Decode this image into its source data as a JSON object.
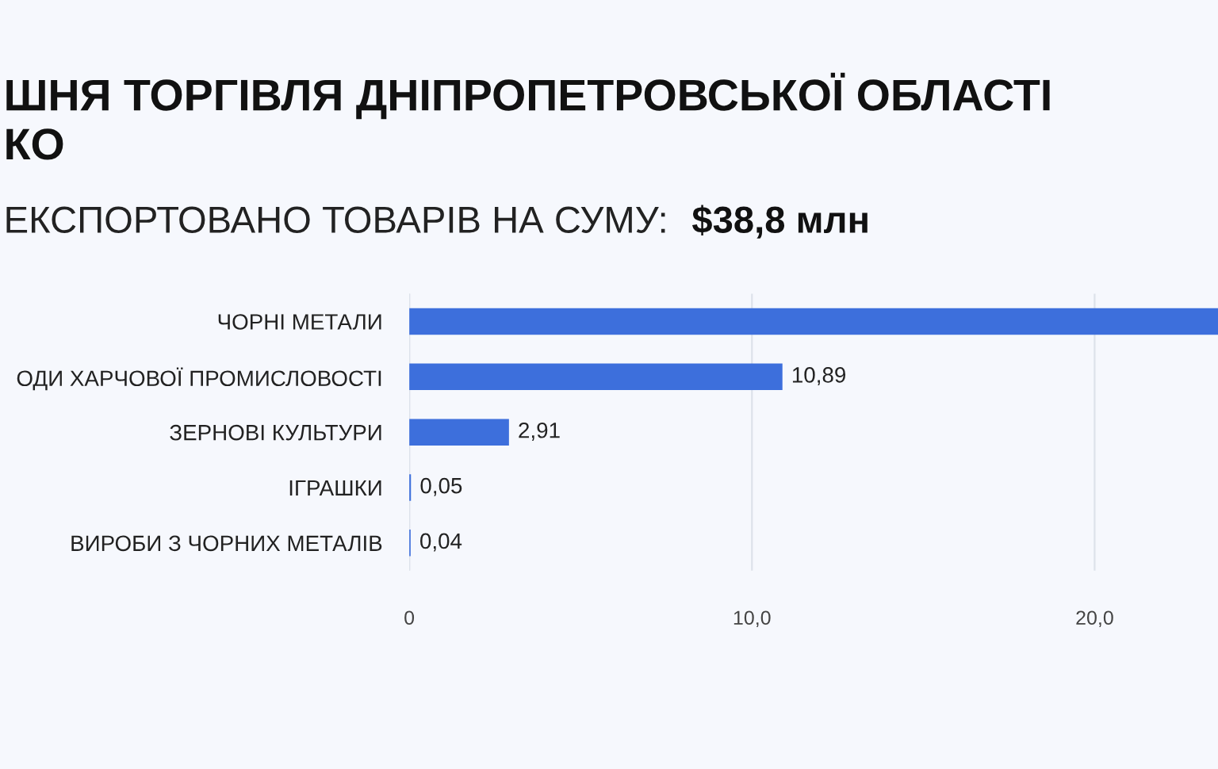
{
  "chart_data": {
    "type": "bar",
    "orientation": "horizontal",
    "title": "ШНЯ ТОРГІВЛЯ ДНІПРОПЕТРОВСЬКОЇ ОБЛАСТІ\nКО",
    "subtitle": "ЕКСПОРТОВАНО ТОВАРІВ НА СУМУ:",
    "annotations": [
      "$38,8 млн"
    ],
    "categories": [
      "ЧОРНІ МЕТАЛИ",
      "ОДИ ХАРЧОВОЇ ПРОМИСЛОВОСТІ",
      "ЗЕРНОВІ КУЛЬТУРИ",
      "ІГРАШКИ",
      "ВИРОБИ З ЧОРНИХ МЕТАЛІВ"
    ],
    "values": [
      23.6,
      10.89,
      2.91,
      0.05,
      0.04
    ],
    "value_labels": [
      null,
      "10,89",
      "2,91",
      "0,05",
      "0,04"
    ],
    "colors": [
      "#3d6fdc",
      "#3d6fdc",
      "#3d6fdc",
      "#3d6fdc",
      "#3d6fdc"
    ],
    "xlim": [
      0,
      23.6
    ],
    "xticks": [
      0,
      {
        "value": 10,
        "label": "10,0"
      },
      {
        "value": 20,
        "label": "20,0"
      }
    ],
    "grid": "x"
  }
}
